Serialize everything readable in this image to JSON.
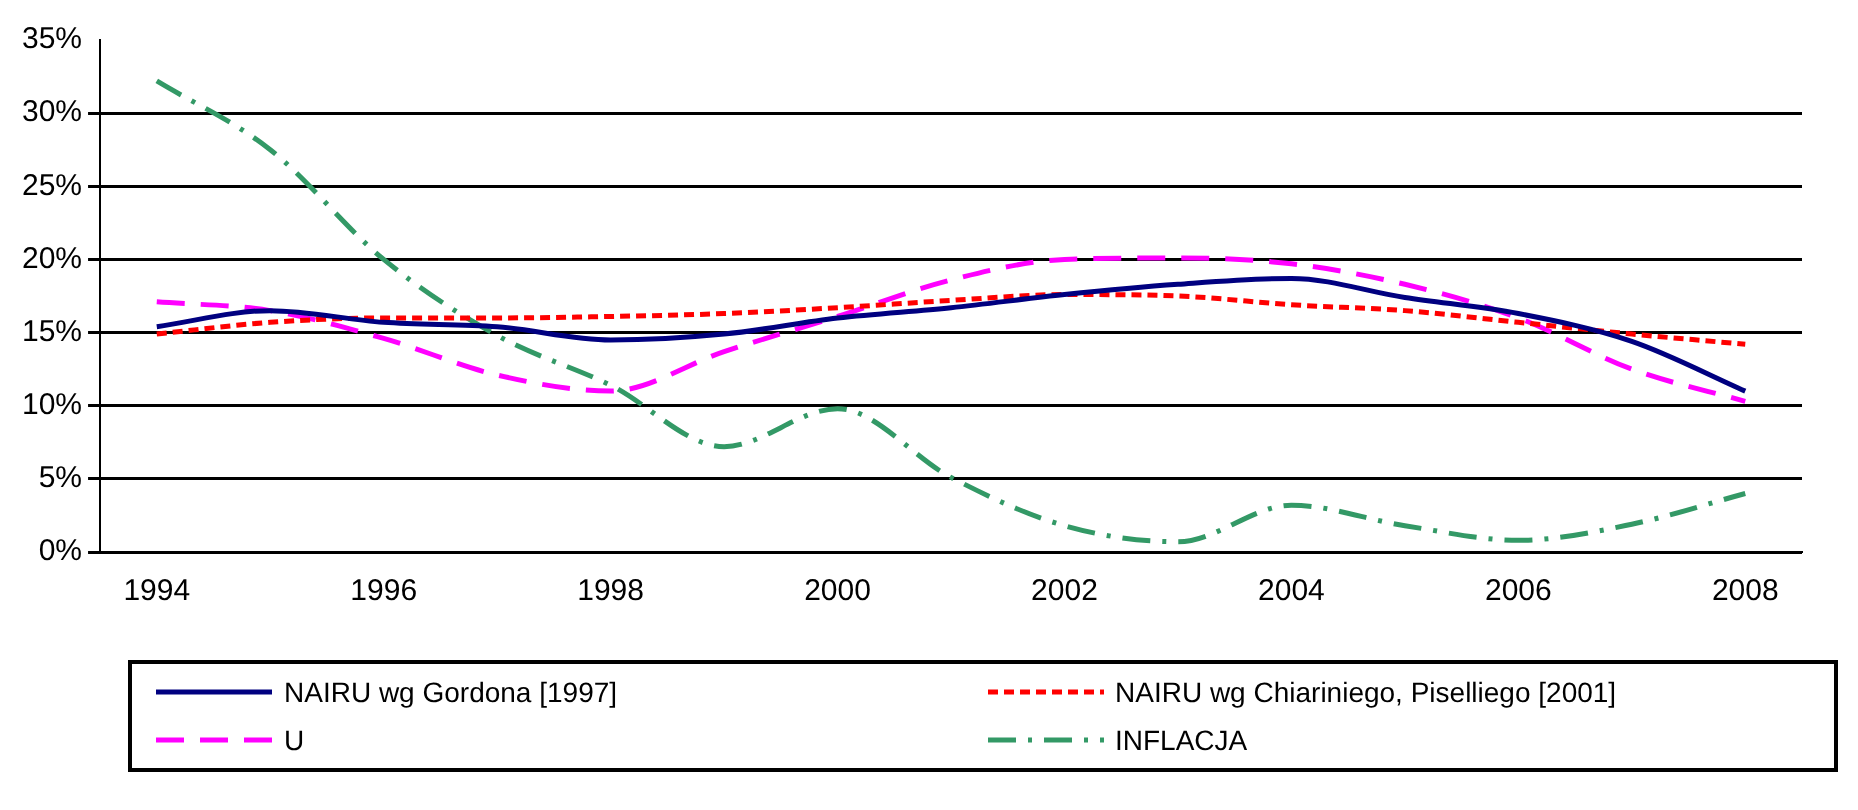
{
  "chart_data": {
    "type": "line",
    "categories": [
      "1994",
      null,
      "1996",
      null,
      "1998",
      null,
      "2000",
      null,
      "2002",
      null,
      "2004",
      null,
      "2006",
      null,
      "2008"
    ],
    "ylim": [
      0,
      35
    ],
    "yticks": [
      {
        "value": 0,
        "label": "0%"
      },
      {
        "value": 5,
        "label": "5%"
      },
      {
        "value": 10,
        "label": "10%"
      },
      {
        "value": 15,
        "label": "15%"
      },
      {
        "value": 20,
        "label": "20%"
      },
      {
        "value": 25,
        "label": "25%"
      },
      {
        "value": 30,
        "label": "30%"
      },
      {
        "value": 35,
        "label": "35%"
      }
    ],
    "grid": "y",
    "legend": "bottom",
    "marker": "none",
    "series": [
      {
        "name": "NAIRU wg Gordona [1997]",
        "color": "#000080",
        "line_style": "solid",
        "values": [
          15.4,
          16.5,
          15.7,
          15.4,
          14.5,
          14.9,
          16,
          16.7,
          17.6,
          18.3,
          18.7,
          17.4,
          16.3,
          14.4,
          11
        ]
      },
      {
        "name": "NAIRU wg Chiariniego, Piselliego [2001]",
        "color": "#ff0000",
        "line_style": "dotted",
        "values": [
          14.9,
          15.7,
          16,
          16,
          16.1,
          16.3,
          16.7,
          17.2,
          17.6,
          17.5,
          16.9,
          16.5,
          15.7,
          14.9,
          14.2
        ]
      },
      {
        "name": "U",
        "color": "#ff00ff",
        "line_style": "dashed",
        "values": [
          17.1,
          16.5,
          14.6,
          12.1,
          11,
          13.7,
          16.1,
          18.6,
          20,
          20.1,
          19.7,
          18.3,
          16,
          12.5,
          10.3
        ]
      },
      {
        "name": "INFLACJA",
        "color": "#339966",
        "line_style": "dashdot",
        "values": [
          32.2,
          27.5,
          20,
          14.8,
          11.4,
          7.2,
          9.8,
          5.1,
          1.8,
          0.7,
          3.2,
          1.8,
          0.8,
          1.9,
          4
        ]
      }
    ]
  }
}
